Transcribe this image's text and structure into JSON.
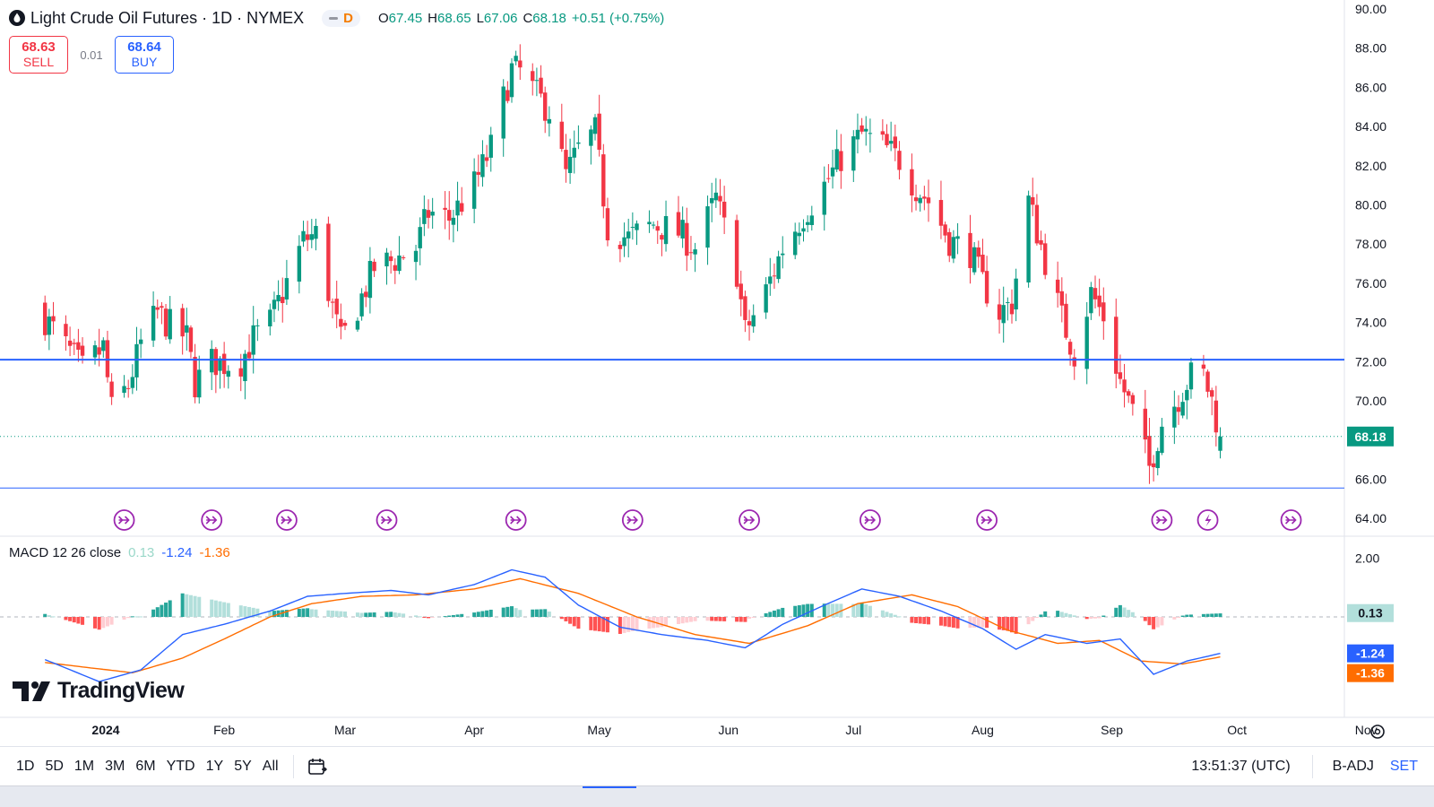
{
  "legend": {
    "title": "Light Crude Oil Futures · 1D · NYMEX",
    "pill_letter": "D",
    "o_key": "O",
    "o_val": "67.45",
    "h_key": "H",
    "h_val": "68.65",
    "l_key": "L",
    "l_val": "67.06",
    "c_key": "C",
    "c_val": "68.18",
    "change": "+0.51 (+0.75%)"
  },
  "trade": {
    "sell_price": "68.63",
    "sell_label": "SELL",
    "spread": "0.01",
    "buy_price": "68.64",
    "buy_label": "BUY"
  },
  "macd_legend": {
    "name": "MACD 12 26 close",
    "hist": "0.13",
    "macd": "-1.24",
    "signal": "-1.36"
  },
  "watermark": "TradingView",
  "bottom_bar": {
    "ranges": [
      "1D",
      "5D",
      "1M",
      "3M",
      "6M",
      "YTD",
      "1Y",
      "5Y",
      "All"
    ],
    "clock": "13:51:37 (UTC)",
    "badj": "B-ADJ",
    "set": "SET"
  },
  "colors": {
    "up": "#089981",
    "down": "#f23645",
    "hline": "#2962ff",
    "macd_line": "#2962ff",
    "signal_line": "#ff6d00",
    "hist_up_strong": "#26a69a",
    "hist_up_weak": "#b2dfdb",
    "hist_down_strong": "#ff5252",
    "hist_down_weak": "#ffcdd2",
    "event_marker": "#9c27b0"
  },
  "chart_data": {
    "type": "candlestick",
    "title": "Light Crude Oil Futures · 1D · NYMEX",
    "price_axis": {
      "range": [
        64,
        90
      ],
      "ticks": [
        "90.00",
        "88.00",
        "86.00",
        "84.00",
        "82.00",
        "80.00",
        "78.00",
        "76.00",
        "74.00",
        "72.00",
        "70.00",
        "66.00",
        "64.00"
      ]
    },
    "time_axis": {
      "labels": [
        "2024",
        "Feb",
        "Mar",
        "Apr",
        "May",
        "Jun",
        "Jul",
        "Aug",
        "Sep",
        "Oct",
        "Nov"
      ],
      "start_date": "2024-01-01",
      "end_date": "2024-11-10"
    },
    "last_price": "68.18",
    "horizontal_lines": [
      72.1,
      65.55
    ],
    "price_path_close": [
      [
        "2023-12-20",
        74.2
      ],
      [
        "2023-12-29",
        71.6
      ],
      [
        "2024-01-03",
        72.7
      ],
      [
        "2024-01-05",
        69.5
      ],
      [
        "2024-01-09",
        70.8
      ],
      [
        "2024-01-12",
        72.9
      ],
      [
        "2024-01-16",
        74.5
      ],
      [
        "2024-01-18",
        74.0
      ],
      [
        "2024-01-23",
        73.2
      ],
      [
        "2024-01-25",
        70.9
      ],
      [
        "2024-01-29",
        72.0
      ],
      [
        "2024-02-01",
        71.9
      ],
      [
        "2024-02-05",
        72.0
      ],
      [
        "2024-02-08",
        73.2
      ],
      [
        "2024-02-12",
        74.0
      ],
      [
        "2024-02-15",
        75.5
      ],
      [
        "2024-02-20",
        78.2
      ],
      [
        "2024-02-23",
        78.5
      ],
      [
        "2024-02-26",
        75.6
      ],
      [
        "2024-02-29",
        73.0
      ],
      [
        "2024-03-04",
        74.8
      ],
      [
        "2024-03-08",
        76.8
      ],
      [
        "2024-03-13",
        77.2
      ],
      [
        "2024-03-18",
        77.8
      ],
      [
        "2024-03-21",
        79.6
      ],
      [
        "2024-03-26",
        79.3
      ],
      [
        "2024-04-01",
        81.0
      ],
      [
        "2024-04-05",
        82.9
      ],
      [
        "2024-04-08",
        85.4
      ],
      [
        "2024-04-10",
        86.9
      ],
      [
        "2024-04-12",
        86.8
      ],
      [
        "2024-04-16",
        85.6
      ],
      [
        "2024-04-19",
        84.8
      ],
      [
        "2024-04-23",
        81.5
      ],
      [
        "2024-04-26",
        82.8
      ],
      [
        "2024-04-30",
        83.7
      ],
      [
        "2024-05-03",
        78.8
      ],
      [
        "2024-05-08",
        78.3
      ],
      [
        "2024-05-14",
        79.0
      ],
      [
        "2024-05-20",
        78.6
      ],
      [
        "2024-05-24",
        77.8
      ],
      [
        "2024-05-29",
        80.3
      ],
      [
        "2024-06-03",
        76.6
      ],
      [
        "2024-06-05",
        73.5
      ],
      [
        "2024-06-10",
        75.6
      ],
      [
        "2024-06-14",
        77.8
      ],
      [
        "2024-06-19",
        79.5
      ],
      [
        "2024-06-24",
        81.0
      ],
      [
        "2024-06-28",
        82.4
      ],
      [
        "2024-07-03",
        83.6
      ],
      [
        "2024-07-08",
        83.0
      ],
      [
        "2024-07-12",
        82.3
      ],
      [
        "2024-07-16",
        80.9
      ],
      [
        "2024-07-19",
        80.2
      ],
      [
        "2024-07-24",
        78.2
      ],
      [
        "2024-07-29",
        77.6
      ],
      [
        "2024-08-01",
        76.0
      ],
      [
        "2024-08-05",
        74.5
      ],
      [
        "2024-08-08",
        75.0
      ],
      [
        "2024-08-12",
        80.2
      ],
      [
        "2024-08-15",
        77.9
      ],
      [
        "2024-08-20",
        74.2
      ],
      [
        "2024-08-23",
        72.4
      ],
      [
        "2024-08-27",
        75.5
      ],
      [
        "2024-08-30",
        74.3
      ],
      [
        "2024-09-03",
        71.0
      ],
      [
        "2024-09-06",
        69.4
      ],
      [
        "2024-09-10",
        66.6
      ],
      [
        "2024-09-13",
        68.9
      ],
      [
        "2024-09-17",
        70.2
      ],
      [
        "2024-09-20",
        71.3
      ],
      [
        "2024-09-23",
        71.3
      ],
      [
        "2024-09-25",
        70.0
      ],
      [
        "2024-09-27",
        68.18
      ]
    ],
    "macd_axis": {
      "range": [
        -2.4,
        2.3
      ],
      "ticks": [
        "2.00"
      ],
      "readouts": [
        "0.13",
        "-1.24",
        "-1.36"
      ]
    },
    "macd_path": [
      [
        "2023-12-20",
        -1.45
      ],
      [
        "2024-01-02",
        -2.2
      ],
      [
        "2024-01-12",
        -1.8
      ],
      [
        "2024-01-22",
        -0.6
      ],
      [
        "2024-02-01",
        -0.25
      ],
      [
        "2024-02-12",
        0.2
      ],
      [
        "2024-02-21",
        0.7
      ],
      [
        "2024-03-01",
        0.8
      ],
      [
        "2024-03-12",
        0.9
      ],
      [
        "2024-03-21",
        0.75
      ],
      [
        "2024-04-01",
        1.1
      ],
      [
        "2024-04-10",
        1.6
      ],
      [
        "2024-04-18",
        1.35
      ],
      [
        "2024-04-26",
        0.4
      ],
      [
        "2024-05-06",
        -0.35
      ],
      [
        "2024-05-16",
        -0.6
      ],
      [
        "2024-05-27",
        -0.8
      ],
      [
        "2024-06-05",
        -1.05
      ],
      [
        "2024-06-14",
        -0.25
      ],
      [
        "2024-06-24",
        0.4
      ],
      [
        "2024-07-03",
        0.95
      ],
      [
        "2024-07-12",
        0.7
      ],
      [
        "2024-07-22",
        0.2
      ],
      [
        "2024-08-01",
        -0.4
      ],
      [
        "2024-08-09",
        -1.1
      ],
      [
        "2024-08-16",
        -0.6
      ],
      [
        "2024-08-26",
        -0.9
      ],
      [
        "2024-09-03",
        -0.75
      ],
      [
        "2024-09-11",
        -1.95
      ],
      [
        "2024-09-19",
        -1.5
      ],
      [
        "2024-09-27",
        -1.24
      ]
    ],
    "signal_path": [
      [
        "2023-12-20",
        -1.55
      ],
      [
        "2024-01-10",
        -1.9
      ],
      [
        "2024-01-22",
        -1.4
      ],
      [
        "2024-02-01",
        -0.75
      ],
      [
        "2024-02-12",
        0.0
      ],
      [
        "2024-02-22",
        0.45
      ],
      [
        "2024-03-05",
        0.7
      ],
      [
        "2024-03-18",
        0.75
      ],
      [
        "2024-04-01",
        0.95
      ],
      [
        "2024-04-12",
        1.3
      ],
      [
        "2024-04-26",
        0.8
      ],
      [
        "2024-05-10",
        0.0
      ],
      [
        "2024-05-24",
        -0.6
      ],
      [
        "2024-06-06",
        -0.9
      ],
      [
        "2024-06-20",
        -0.3
      ],
      [
        "2024-07-02",
        0.45
      ],
      [
        "2024-07-15",
        0.75
      ],
      [
        "2024-07-26",
        0.35
      ],
      [
        "2024-08-07",
        -0.45
      ],
      [
        "2024-08-19",
        -0.9
      ],
      [
        "2024-08-29",
        -0.8
      ],
      [
        "2024-09-08",
        -1.5
      ],
      [
        "2024-09-18",
        -1.6
      ],
      [
        "2024-09-27",
        -1.36
      ]
    ],
    "event_markers": [
      "2024-01-08",
      "2024-01-29",
      "2024-02-16",
      "2024-03-11",
      "2024-04-11",
      "2024-05-09",
      "2024-06-06",
      "2024-07-05",
      "2024-08-02",
      "2024-09-13",
      "2024-09-24",
      "2024-10-14"
    ],
    "event_marker_special": "2024-09-24"
  }
}
